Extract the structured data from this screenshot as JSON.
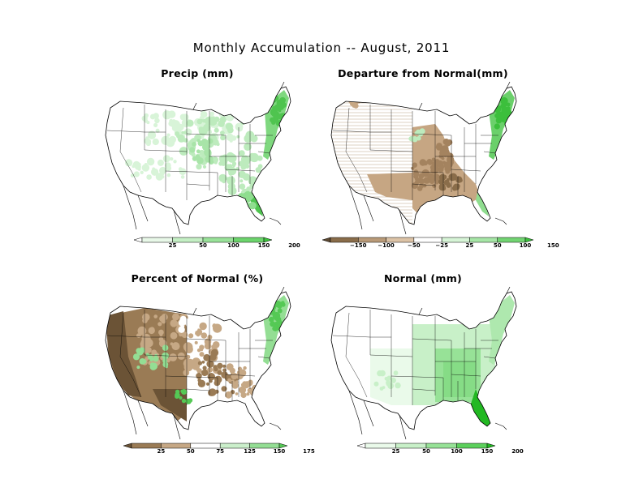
{
  "title": "Monthly Accumulation -- August, 2011",
  "panels": [
    {
      "id": "precip",
      "title": "Precip (mm)",
      "scheme": "precip",
      "colorbar": {
        "labels": [
          "25",
          "50",
          "100",
          "150",
          "200"
        ],
        "colors": [
          "#ffffff",
          "#e8f8e8",
          "#c4efc4",
          "#99e299",
          "#6cd46c",
          "#3cc23c"
        ]
      }
    },
    {
      "id": "departure",
      "title": "Departure from Normal(mm)",
      "scheme": "departure",
      "colorbar": {
        "labels": [
          "−150",
          "−100",
          "−50",
          "−25",
          "25",
          "50",
          "100",
          "150"
        ],
        "colors": [
          "#5e4a32",
          "#8a6d4a",
          "#b99a78",
          "#dcc3a6",
          "#ffffff",
          "#d6f4d6",
          "#a6e6a6",
          "#72d472",
          "#3cbf3c"
        ]
      }
    },
    {
      "id": "percent",
      "title": "Percent of Normal (%)",
      "scheme": "percent",
      "colorbar": {
        "labels": [
          "25",
          "50",
          "75",
          "125",
          "150",
          "175"
        ],
        "colors": [
          "#6b5336",
          "#9a7b55",
          "#c6a885",
          "#ffffff",
          "#cbefcb",
          "#94de94",
          "#55c955"
        ]
      }
    },
    {
      "id": "normal",
      "title": "Normal (mm)",
      "scheme": "normal",
      "colorbar": {
        "labels": [
          "25",
          "50",
          "100",
          "150",
          "200"
        ],
        "colors": [
          "#ffffff",
          "#eafaea",
          "#c8f0c8",
          "#97e297",
          "#5cd05c",
          "#22b822"
        ]
      }
    }
  ]
}
